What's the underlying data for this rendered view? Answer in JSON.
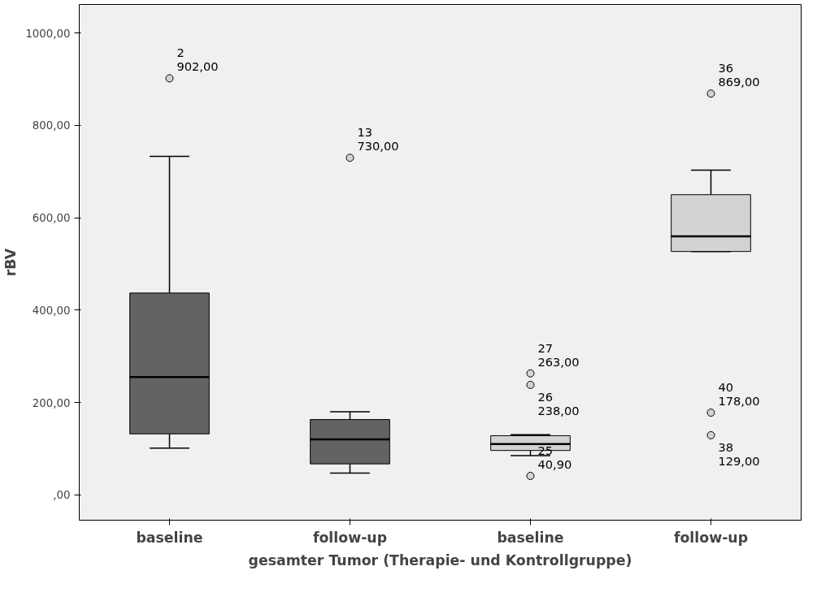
{
  "chart_data": {
    "type": "box",
    "xlabel": "gesamter Tumor (Therapie- und Kontrollgruppe)",
    "ylabel": "rBV",
    "categories": [
      "baseline",
      "follow-up",
      "baseline",
      "follow-up"
    ],
    "colors": [
      "#636363",
      "#636363",
      "#d3d3d3",
      "#d3d3d3"
    ],
    "boxes": [
      {
        "low": 101,
        "q1": 132,
        "median": 255,
        "q3": 437,
        "high": 733,
        "outliers": [
          902
        ]
      },
      {
        "low": 47,
        "q1": 67,
        "median": 120,
        "q3": 163,
        "high": 180,
        "outliers": [
          730
        ]
      },
      {
        "low": 85,
        "q1": 96,
        "median": 110,
        "q3": 128,
        "high": 130,
        "outliers": [
          263,
          238,
          40.9
        ]
      },
      {
        "low": 527,
        "q1": 527,
        "median": 560,
        "q3": 650,
        "high": 703,
        "outliers": [
          869,
          178,
          129
        ]
      }
    ],
    "ylim": [
      -55,
      1062
    ],
    "yticks": [
      {
        "value": 0,
        "label": ",00"
      },
      {
        "value": 200,
        "label": "200,00"
      },
      {
        "value": 400,
        "label": "400,00"
      },
      {
        "value": 600,
        "label": "600,00"
      },
      {
        "value": 800,
        "label": "800,00"
      },
      {
        "value": 1000,
        "label": "1000,00"
      }
    ],
    "grid": false,
    "annotations": [
      "2\n902,00",
      "13\n730,00",
      "27\n263,00",
      "26\n238,00",
      "25\n40,90",
      "36\n869,00",
      "40\n178,00",
      "38\n129,00"
    ]
  }
}
